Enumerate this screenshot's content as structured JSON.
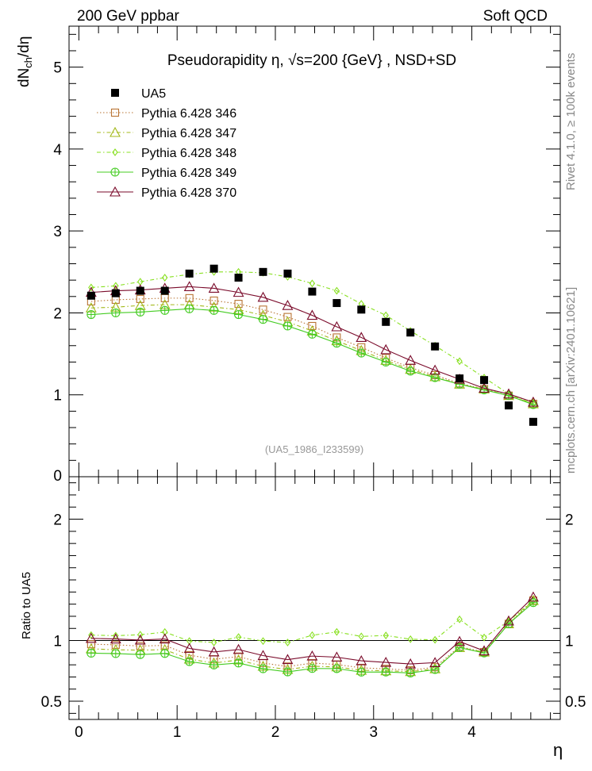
{
  "header": {
    "left": "200 GeV ppbar",
    "right": "Soft QCD",
    "side_top": "Rivet 4.1.0, ≥ 100k events",
    "side_bottom": "mcplots.cern.ch [arXiv:2401.10621]"
  },
  "chart_data": {
    "type": "scatter",
    "title": "Pseudorapidity  η, √s=200 {GeV} , NSD+SD",
    "analysis_tag": "(UA5_1986_I233599)",
    "xlabel": "η",
    "ylabel": "dN_ch/dη",
    "ylabel_main": "dN",
    "ylabel_sub": "ch",
    "ylabel_tail": "/dη",
    "ratio_ylabel": "Ratio to UA5",
    "xlim": [
      -0.1,
      4.9
    ],
    "ylim": [
      0,
      5.5
    ],
    "ratio_ylim": [
      0.35,
      2.35
    ],
    "x_ticks": [
      "0",
      "1",
      "2",
      "3",
      "4"
    ],
    "y_ticks": [
      "1",
      "2",
      "3",
      "4",
      "5"
    ],
    "y_zero_label": "0",
    "ratio_ticks": [
      "0.5",
      "1",
      "2"
    ],
    "x": [
      0.125,
      0.375,
      0.625,
      0.875,
      1.125,
      1.375,
      1.625,
      1.875,
      2.125,
      2.375,
      2.625,
      2.875,
      3.125,
      3.375,
      3.625,
      3.875,
      4.125,
      4.375,
      4.625
    ],
    "series": [
      {
        "name": "UA5",
        "color": "#000000",
        "marker": "filled-square",
        "line": "none",
        "values": [
          2.21,
          2.24,
          2.27,
          2.27,
          2.48,
          2.54,
          2.43,
          2.5,
          2.48,
          2.26,
          2.12,
          2.04,
          1.89,
          1.76,
          1.59,
          1.2,
          1.18,
          0.87,
          0.67
        ]
      },
      {
        "name": "Pythia 6.428 346",
        "color": "#b87333",
        "marker": "open-square",
        "line": "dotted",
        "values": [
          2.14,
          2.16,
          2.17,
          2.18,
          2.18,
          2.15,
          2.11,
          2.04,
          1.95,
          1.84,
          1.7,
          1.58,
          1.45,
          1.33,
          1.24,
          1.14,
          1.07,
          0.99,
          0.89
        ]
      },
      {
        "name": "Pythia 6.428 347",
        "color": "#a3b81a",
        "marker": "open-triangle",
        "line": "dashdot",
        "values": [
          2.06,
          2.07,
          2.09,
          2.1,
          2.1,
          2.07,
          2.04,
          1.97,
          1.89,
          1.78,
          1.66,
          1.54,
          1.42,
          1.31,
          1.22,
          1.13,
          1.07,
          0.99,
          0.89
        ]
      },
      {
        "name": "Pythia 6.428 348",
        "color": "#88e020",
        "marker": "open-diamond",
        "line": "dashdot",
        "values": [
          2.31,
          2.33,
          2.38,
          2.43,
          2.47,
          2.5,
          2.5,
          2.49,
          2.44,
          2.36,
          2.27,
          2.11,
          1.97,
          1.78,
          1.6,
          1.41,
          1.21,
          1.01,
          0.89
        ]
      },
      {
        "name": "Pythia 6.428 349",
        "color": "#44cc22",
        "marker": "open-crossed-circle",
        "line": "solid",
        "values": [
          1.98,
          2.0,
          2.01,
          2.03,
          2.05,
          2.03,
          1.98,
          1.92,
          1.84,
          1.74,
          1.63,
          1.51,
          1.4,
          1.29,
          1.21,
          1.13,
          1.06,
          0.99,
          0.88
        ]
      },
      {
        "name": "Pythia 6.428 370",
        "color": "#7a0a2a",
        "marker": "open-triangle",
        "line": "solid",
        "values": [
          2.25,
          2.27,
          2.28,
          2.3,
          2.32,
          2.3,
          2.25,
          2.19,
          2.09,
          1.97,
          1.83,
          1.7,
          1.55,
          1.42,
          1.3,
          1.19,
          1.08,
          1.01,
          0.91
        ]
      }
    ],
    "ratio_values": [
      [
        0.97,
        0.965,
        0.955,
        0.96,
        0.88,
        0.846,
        0.868,
        0.815,
        0.786,
        0.814,
        0.803,
        0.775,
        0.767,
        0.756,
        0.78,
        0.95,
        0.905,
        1.138,
        1.33
      ],
      [
        0.932,
        0.924,
        0.921,
        0.925,
        0.847,
        0.815,
        0.84,
        0.788,
        0.762,
        0.788,
        0.783,
        0.755,
        0.751,
        0.744,
        0.767,
        0.942,
        0.905,
        1.138,
        1.33
      ],
      [
        1.045,
        1.04,
        1.048,
        1.07,
        0.996,
        0.984,
        1.029,
        0.996,
        0.984,
        1.044,
        1.071,
        1.034,
        1.042,
        1.011,
        1.006,
        1.175,
        1.025,
        1.161,
        1.33
      ],
      [
        0.896,
        0.893,
        0.885,
        0.894,
        0.827,
        0.799,
        0.815,
        0.768,
        0.742,
        0.77,
        0.769,
        0.74,
        0.741,
        0.733,
        0.761,
        0.942,
        0.898,
        1.138,
        1.313
      ],
      [
        1.018,
        1.013,
        1.004,
        1.013,
        0.935,
        0.906,
        0.926,
        0.876,
        0.843,
        0.872,
        0.863,
        0.833,
        0.82,
        0.807,
        0.818,
        0.992,
        0.915,
        1.161,
        1.358
      ]
    ]
  }
}
